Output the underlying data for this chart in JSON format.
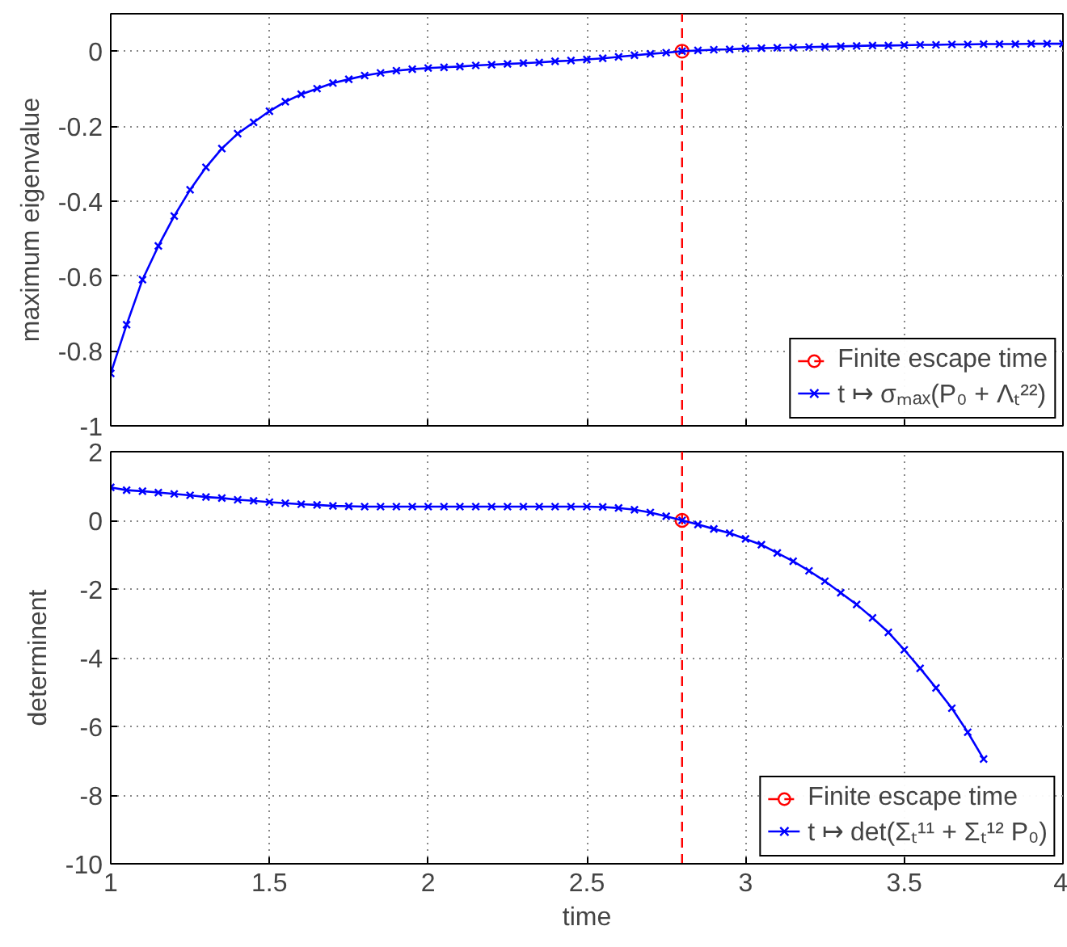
{
  "chart_data": [
    {
      "type": "line",
      "ylabel": "maximum eigenvalue",
      "xlim": [
        1,
        4
      ],
      "ylim": [
        -1,
        0.1
      ],
      "xticks": [
        1,
        1.5,
        2,
        2.5,
        3,
        3.5,
        4
      ],
      "yticks": [
        -1,
        -0.8,
        -0.6,
        -0.4,
        -0.2,
        0
      ],
      "tick_labels": "y",
      "grid": true,
      "legend": "bottom right",
      "x": [
        1,
        1.05,
        1.1,
        1.15,
        1.2,
        1.25,
        1.3,
        1.35,
        1.4,
        1.45,
        1.5,
        1.55,
        1.6,
        1.65,
        1.7,
        1.75,
        1.8,
        1.85,
        1.9,
        1.95,
        2,
        2.05,
        2.1,
        2.15,
        2.2,
        2.25,
        2.3,
        2.35,
        2.4,
        2.45,
        2.5,
        2.55,
        2.6,
        2.65,
        2.7,
        2.75,
        2.8,
        2.85,
        2.9,
        2.95,
        3,
        3.05,
        3.1,
        3.15,
        3.2,
        3.25,
        3.3,
        3.35,
        3.4,
        3.45,
        3.5,
        3.55,
        3.6,
        3.65,
        3.7,
        3.75,
        3.8,
        3.85,
        3.9,
        3.95,
        4
      ],
      "ref_lines": [
        {
          "axis": "x",
          "value": 2.8,
          "color": "#ff0000",
          "line_style": "dashed"
        }
      ],
      "series": [
        {
          "name": "Finite escape time",
          "type": "scatter",
          "marker": "circle",
          "color": "#ff0000",
          "x": [
            2.8
          ],
          "values": [
            0
          ]
        },
        {
          "name": "t ↦ σₘₐₓ(P₀ + Λₜ²²)",
          "marker": "cross",
          "color": "#0000ff",
          "values": [
            -0.86,
            -0.73,
            -0.61,
            -0.52,
            -0.44,
            -0.37,
            -0.31,
            -0.26,
            -0.22,
            -0.19,
            -0.16,
            -0.135,
            -0.115,
            -0.1,
            -0.085,
            -0.075,
            -0.065,
            -0.058,
            -0.052,
            -0.048,
            -0.045,
            -0.043,
            -0.041,
            -0.038,
            -0.036,
            -0.034,
            -0.032,
            -0.03,
            -0.027,
            -0.025,
            -0.022,
            -0.019,
            -0.015,
            -0.011,
            -0.007,
            -0.004,
            0,
            0.002,
            0.004,
            0.005,
            0.007,
            0.008,
            0.009,
            0.01,
            0.011,
            0.012,
            0.013,
            0.014,
            0.015,
            0.015,
            0.016,
            0.017,
            0.017,
            0.018,
            0.018,
            0.019,
            0.019,
            0.019,
            0.02,
            0.02,
            0.02
          ]
        }
      ]
    },
    {
      "type": "line",
      "xlabel": "time",
      "ylabel": "determinent",
      "xlim": [
        1,
        4
      ],
      "ylim": [
        -10,
        2
      ],
      "xticks": [
        1,
        1.5,
        2,
        2.5,
        3,
        3.5,
        4
      ],
      "yticks": [
        -10,
        -8,
        -6,
        -4,
        -2,
        0,
        2
      ],
      "grid": true,
      "legend": "bottom right",
      "x": [
        1,
        1.05,
        1.1,
        1.15,
        1.2,
        1.25,
        1.3,
        1.35,
        1.4,
        1.45,
        1.5,
        1.55,
        1.6,
        1.65,
        1.7,
        1.75,
        1.8,
        1.85,
        1.9,
        1.95,
        2,
        2.05,
        2.1,
        2.15,
        2.2,
        2.25,
        2.3,
        2.35,
        2.4,
        2.45,
        2.5,
        2.55,
        2.6,
        2.65,
        2.7,
        2.75,
        2.8,
        2.85,
        2.9,
        2.95,
        3,
        3.05,
        3.1,
        3.15,
        3.2,
        3.25,
        3.3,
        3.35,
        3.4,
        3.45,
        3.5,
        3.55,
        3.6,
        3.65,
        3.7,
        3.75
      ],
      "ref_lines": [
        {
          "axis": "x",
          "value": 2.8,
          "color": "#ff0000",
          "line_style": "dashed"
        }
      ],
      "series": [
        {
          "name": "Finite escape time",
          "type": "scatter",
          "marker": "circle",
          "color": "#ff0000",
          "x": [
            2.8
          ],
          "values": [
            0
          ]
        },
        {
          "name": "t ↦ det(Σₜ¹¹ + Σₜ¹² P₀)",
          "marker": "cross",
          "color": "#0000ff",
          "values": [
            0.96,
            0.88,
            0.85,
            0.81,
            0.77,
            0.73,
            0.68,
            0.65,
            0.6,
            0.57,
            0.53,
            0.5,
            0.47,
            0.45,
            0.42,
            0.41,
            0.4,
            0.4,
            0.4,
            0.4,
            0.4,
            0.4,
            0.4,
            0.4,
            0.4,
            0.4,
            0.4,
            0.4,
            0.4,
            0.4,
            0.4,
            0.39,
            0.36,
            0.31,
            0.23,
            0.12,
            0,
            -0.12,
            -0.25,
            -0.37,
            -0.54,
            -0.71,
            -0.95,
            -1.19,
            -1.47,
            -1.77,
            -2.11,
            -2.45,
            -2.84,
            -3.26,
            -3.77,
            -4.31,
            -4.88,
            -5.47,
            -6.17,
            -6.95
          ]
        }
      ]
    }
  ]
}
